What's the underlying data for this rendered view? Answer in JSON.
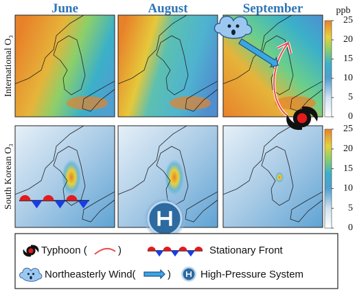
{
  "columns": [
    "June",
    "August",
    "September"
  ],
  "rows": [
    "International O₃",
    "South Korean O₃"
  ],
  "colorbars": [
    {
      "unit": "ppb",
      "ticks": [
        0,
        5,
        10,
        15,
        20,
        25
      ]
    },
    {
      "ticks": [
        0,
        5,
        10,
        15,
        20,
        25
      ]
    }
  ],
  "legend": [
    {
      "before": "Typhoon (",
      "after": ")"
    },
    {
      "before": "Stationary Front"
    },
    {
      "before": "Northeasterly Wind(",
      "after": ")"
    },
    {
      "before": "High-Pressure System"
    }
  ]
}
